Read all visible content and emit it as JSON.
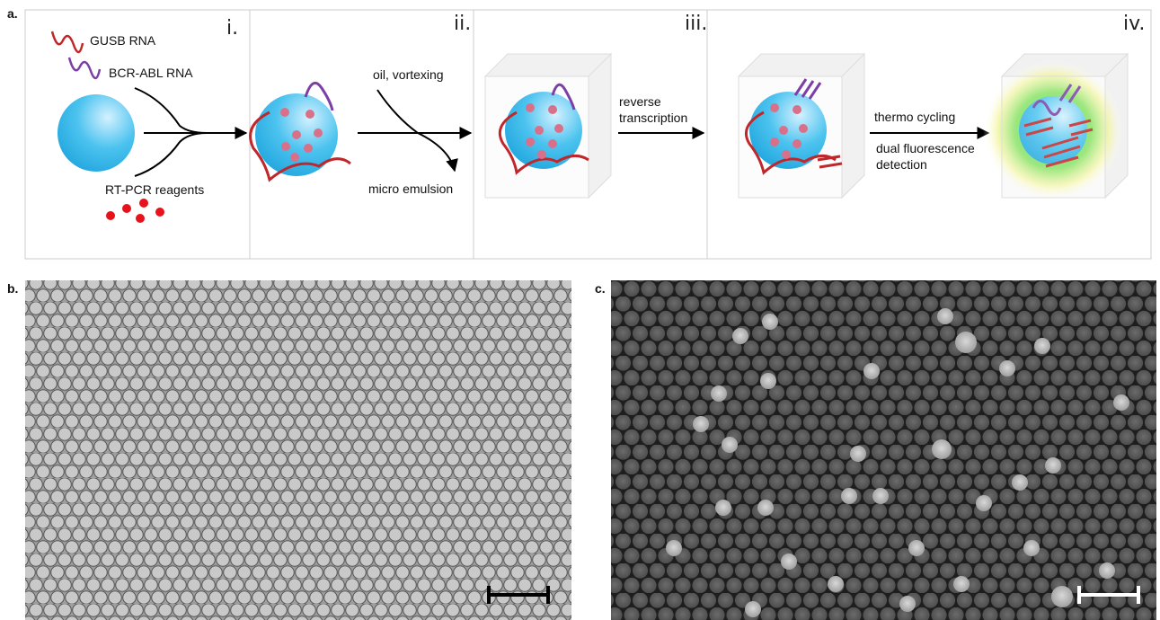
{
  "panels": {
    "a": {
      "label": "a.",
      "steps": [
        "i.",
        "ii.",
        "iii.",
        "iv."
      ],
      "gusb": "GUSB RNA",
      "bcr_abl": "BCR-ABL RNA",
      "reagents": "RT-PCR reagents",
      "oil": "oil, vortexing",
      "emulsion": "micro emulsion",
      "rt": [
        "reverse",
        "transcription"
      ],
      "cycling": "thermo cycling",
      "detection": [
        "dual fluorescence",
        "detection"
      ]
    },
    "b": {
      "label": "b."
    },
    "c": {
      "label": "c."
    }
  }
}
